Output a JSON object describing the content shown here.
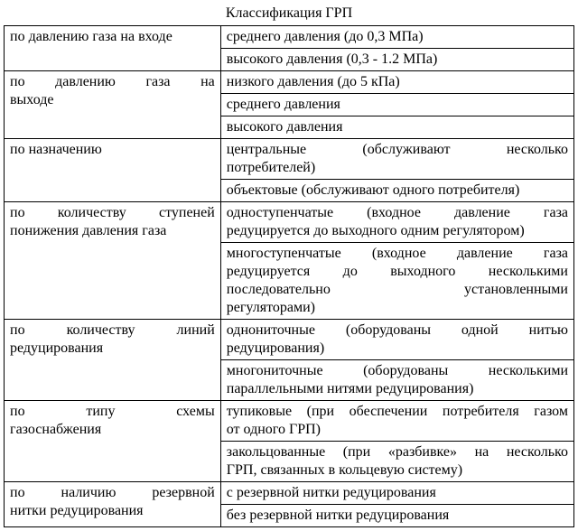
{
  "title": "Классификация ГРП",
  "rows": [
    {
      "left": "по давлению газа на входе",
      "right": "среднего давления (до 0,3 МПа)",
      "left_rowspan": 2,
      "left_justify": false
    },
    {
      "right": "высокого давления (0,3 - 1.2 МПа)"
    },
    {
      "left_line1": "по давлению газа на",
      "left_line2": "выходе",
      "right": "низкого давления (до 5 кПа)",
      "left_rowspan": 3,
      "left_twoline_justify": true
    },
    {
      "right": "среднего давления"
    },
    {
      "right": "высокого давления"
    },
    {
      "left": "по назначению",
      "right_line1": "центральные (обслуживают несколько",
      "right_line2": "потребителей)",
      "left_rowspan": 2,
      "right_twoline_justify": true
    },
    {
      "right": "объектовые (обслуживают одного потребителя)"
    },
    {
      "left_line1": "по количеству ступеней",
      "left_line2": "понижения давления газа",
      "right_line1": "одноступенчатые (входное давление газа",
      "right_line2": "редуцируется до выходного одним регулятором)",
      "left_rowspan": 2,
      "left_twoline_justify": true,
      "right_twoline_justify": true
    },
    {
      "right_line1": "многоступенчатые (входное давление газа",
      "right_line2": "редуцируется до выходного несколькими",
      "right_line3": "последовательно установленными",
      "right_line4": "регуляторами)",
      "right_multiline_justify": true
    },
    {
      "left_line1": "по количеству линий",
      "left_line2": "редуцирования",
      "right_line1": "однониточные (оборудованы одной нитью",
      "right_line2": "редуцирования)",
      "left_rowspan": 2,
      "left_twoline_justify": true,
      "right_twoline_justify": true
    },
    {
      "right_line1": "многониточные (оборудованы несколькими",
      "right_line2": "параллельными нитями редуцирования)",
      "right_twoline_justify": true
    },
    {
      "left_line1": "по типу схемы",
      "left_line2": "газоснабжения",
      "right_line1": "тупиковые (при обеспечении потребителя газом",
      "right_line2": "от одного ГРП)",
      "left_rowspan": 2,
      "left_twoline_justify": true,
      "right_twoline_justify": true
    },
    {
      "right_line1": "закольцованные (при «разбивке» на несколько",
      "right_line2": "ГРП, связанных в кольцевую систему)",
      "right_twoline_justify": true
    },
    {
      "left_line1": "по наличию резервной",
      "left_line2": "нитки редуцирования",
      "right": "с резервной нитки редуцирования",
      "left_rowspan": 2,
      "left_twoline_justify": true
    },
    {
      "right": "без резервной нитки редуцирования"
    }
  ]
}
